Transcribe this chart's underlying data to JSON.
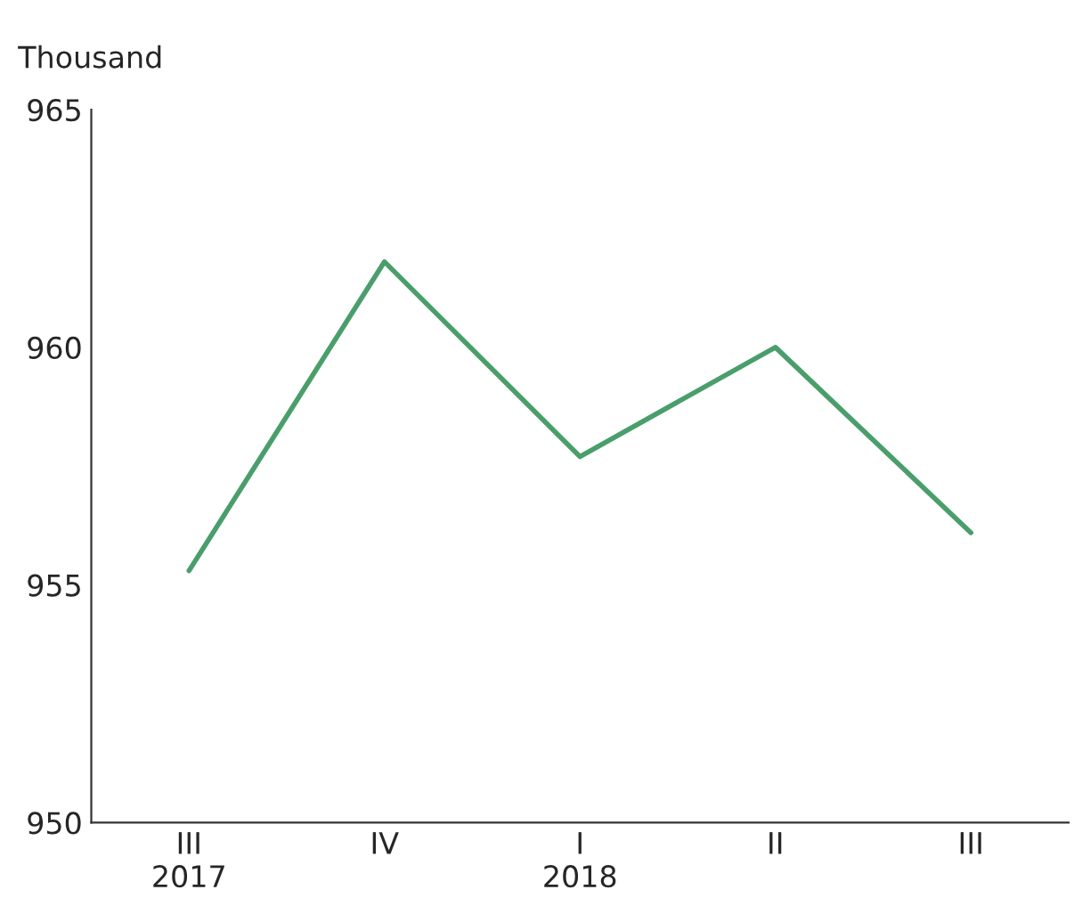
{
  "chart_data": {
    "type": "line",
    "ylabel": "Thousand",
    "categories": [
      "III\n2017",
      "IV",
      "I\n2018",
      "II",
      "III"
    ],
    "series": [
      {
        "color": "#4a9e6b",
        "values": [
          955.3,
          961.8,
          957.7,
          960.0,
          956.1
        ]
      }
    ],
    "ylim": [
      950,
      965
    ],
    "yticks": [
      950,
      955,
      960,
      965
    ],
    "grid": false,
    "legend": false,
    "marker": "none",
    "line_style": "solid"
  }
}
